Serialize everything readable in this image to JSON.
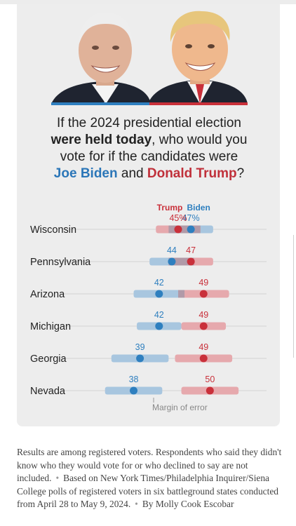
{
  "question": {
    "line1": "If the 2024 presidential election",
    "bold": "were held today",
    "line2_rest": ", who would you",
    "line3": "vote for if the candidates were",
    "biden": "Joe Biden",
    "and": "and",
    "trump": "Donald Trump",
    "qmark": "?"
  },
  "colors": {
    "trump": "#c9303a",
    "biden": "#2e7fbf",
    "trump_band": "#e6a9ad",
    "biden_band": "#a8c6df",
    "overlap_band": "#b19aa8"
  },
  "chart_data": {
    "type": "dot-range",
    "series": [
      {
        "name": "Trump",
        "color": "#c9303a"
      },
      {
        "name": "Biden",
        "color": "#2e7fbf"
      }
    ],
    "x_axis_range": [
      30,
      60
    ],
    "states": [
      {
        "name": "Wisconsin",
        "trump": 45,
        "biden": 47,
        "trump_label": "45%",
        "biden_label": "47%",
        "moe": 3.5
      },
      {
        "name": "Pennsylvania",
        "trump": 47,
        "biden": 44,
        "trump_label": "47",
        "biden_label": "44",
        "moe": 3.5
      },
      {
        "name": "Arizona",
        "trump": 49,
        "biden": 42,
        "trump_label": "49",
        "biden_label": "42",
        "moe": 4.0
      },
      {
        "name": "Michigan",
        "trump": 49,
        "biden": 42,
        "trump_label": "49",
        "biden_label": "42",
        "moe": 3.5
      },
      {
        "name": "Georgia",
        "trump": 49,
        "biden": 39,
        "trump_label": "49",
        "biden_label": "39",
        "moe": 4.5
      },
      {
        "name": "Nevada",
        "trump": 50,
        "biden": 38,
        "trump_label": "50",
        "biden_label": "38",
        "moe": 4.5
      }
    ],
    "annotation": "Margin of error"
  },
  "footer": {
    "text1": "Results are among registered voters. Respondents who said they didn't know who they would vote for or who declined to say are not included.",
    "text2": "Based on New York Times/Philadelphia Inquirer/Siena College polls of registered voters in six battleground states conducted from April 28 to May 9, 2024.",
    "text3": "By Molly Cook Escobar"
  }
}
